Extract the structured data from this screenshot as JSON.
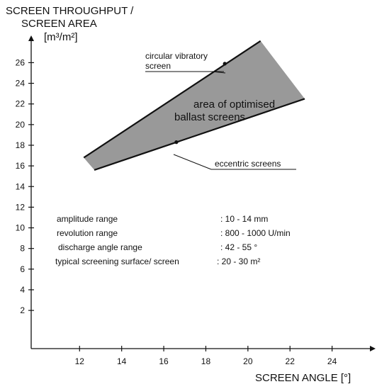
{
  "chart_data": {
    "type": "area",
    "ylabel": [
      "SCREEN THROUGHPUT /",
      "SCREEN AREA",
      "[m³/m²]"
    ],
    "xlabel": "SCREEN ANGLE [°]",
    "x_ticks": [
      12,
      14,
      16,
      18,
      20,
      22,
      24
    ],
    "y_ticks": [
      2,
      4,
      6,
      8,
      10,
      12,
      14,
      16,
      18,
      20,
      22,
      24,
      26
    ],
    "xlim": [
      9.7,
      26
    ],
    "ylim": [
      -1.7,
      28.5
    ],
    "grid": false,
    "series": [
      {
        "name": "circular vibratory screen",
        "x": [
          12.2,
          20.6
        ],
        "y": [
          16.8,
          28.1
        ]
      },
      {
        "name": "eccentric screens",
        "x": [
          12.7,
          22.7
        ],
        "y": [
          15.6,
          22.5
        ]
      }
    ],
    "region_label": [
      "area of optimised",
      "ballast screens"
    ],
    "region_color": "#999999",
    "line_color": "#111111",
    "markers": [
      {
        "series": 0,
        "x": 18.9,
        "y": 25.9
      },
      {
        "series": 1,
        "x": 16.6,
        "y": 18.3
      }
    ],
    "parameters": [
      {
        "label": "amplitude range",
        "value": ":  10 - 14 mm"
      },
      {
        "label": "revolution range",
        "value": ":  800 - 1000 U/min"
      },
      {
        "label": "discharge angle range",
        "value": ":  42 - 55 °"
      },
      {
        "label": "typical screening surface/ screen",
        "value": ":  20 - 30 m²"
      }
    ]
  }
}
